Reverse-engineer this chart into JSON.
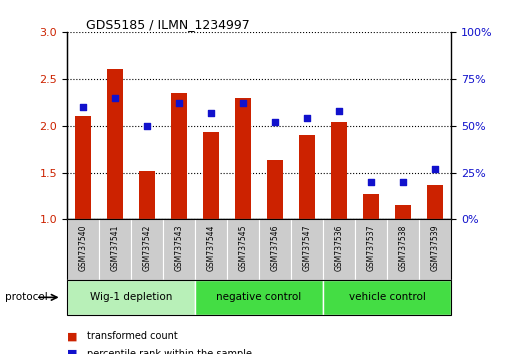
{
  "title": "GDS5185 / ILMN_1234997",
  "samples": [
    "GSM737540",
    "GSM737541",
    "GSM737542",
    "GSM737543",
    "GSM737544",
    "GSM737545",
    "GSM737546",
    "GSM737547",
    "GSM737536",
    "GSM737537",
    "GSM737538",
    "GSM737539"
  ],
  "bar_values": [
    2.1,
    2.6,
    1.52,
    2.35,
    1.93,
    2.3,
    1.63,
    1.9,
    2.04,
    1.27,
    1.15,
    1.37
  ],
  "dot_values": [
    60,
    65,
    50,
    62,
    57,
    62,
    52,
    54,
    58,
    20,
    20,
    27
  ],
  "groups": [
    {
      "label": "Wig-1 depletion",
      "start": 0,
      "end": 3
    },
    {
      "label": "negative control",
      "start": 4,
      "end": 7
    },
    {
      "label": "vehicle control",
      "start": 8,
      "end": 11
    }
  ],
  "bar_color": "#cc2200",
  "dot_color": "#1111cc",
  "ylim_left": [
    1.0,
    3.0
  ],
  "ylim_right": [
    0,
    100
  ],
  "yticks_left": [
    1.0,
    1.5,
    2.0,
    2.5,
    3.0
  ],
  "yticks_right": [
    0,
    25,
    50,
    75,
    100
  ],
  "ytick_labels_right": [
    "0%",
    "25%",
    "50%",
    "75%",
    "100%"
  ],
  "bar_width": 0.5,
  "protocol_label": "protocol",
  "legend_bar_label": "transformed count",
  "legend_dot_label": "percentile rank within the sample",
  "group_green_light": "#b8f0b8",
  "group_green_dark": "#44dd44",
  "sample_box_color": "#cccccc",
  "grid_color": "#000000"
}
